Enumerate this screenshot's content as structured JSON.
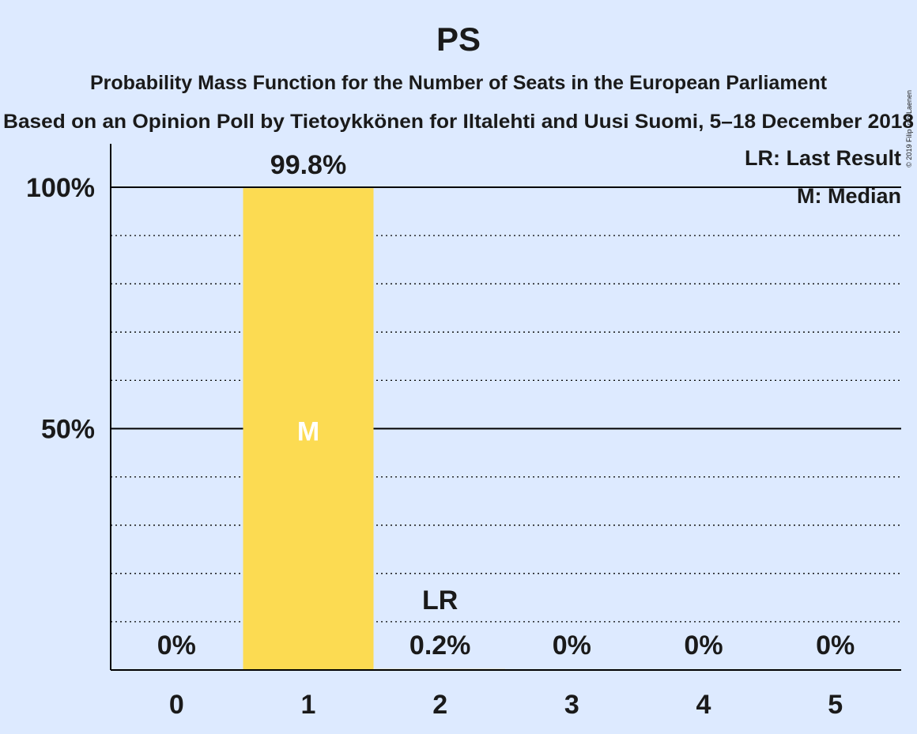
{
  "colors": {
    "background": "#ddeaff",
    "bar": "#fcdb52",
    "median_label": "#ffffff",
    "text": "#1a1a1a",
    "axis": "#000000"
  },
  "chart_data": {
    "type": "bar",
    "title": "PS",
    "subtitle": "Probability Mass Function for the Number of Seats in the European Parliament",
    "subtitle2": "Based on an Opinion Poll by Tietoykkönen for Iltalehti and Uusi Suomi, 5–18 December 2018",
    "copyright": "© 2019 Filip van Laenen",
    "categories": [
      "0",
      "1",
      "2",
      "3",
      "4",
      "5"
    ],
    "values": [
      0,
      99.8,
      0.2,
      0,
      0,
      0
    ],
    "value_labels": [
      "0%",
      "99.8%",
      "0.2%",
      "0%",
      "0%",
      "0%"
    ],
    "ylim": [
      0,
      100
    ],
    "yticks": [
      {
        "value": 50,
        "label": "50%"
      },
      {
        "value": 100,
        "label": "100%"
      }
    ],
    "dotted_gridlines": [
      10,
      20,
      30,
      40,
      60,
      70,
      80,
      90
    ],
    "median_index": 1,
    "median_marker": "M",
    "last_result_index": 2,
    "last_result_marker": "LR",
    "legend": [
      "LR: Last Result",
      "M: Median"
    ],
    "legend_position": "top-right"
  }
}
